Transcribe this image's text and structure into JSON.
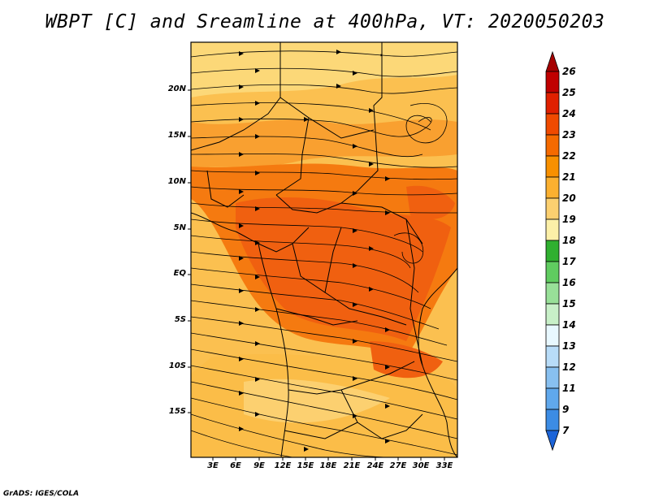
{
  "title": "WBPT [C] and Sreamline at 400hPa, VT: 2020050203",
  "credit": "GrADS: IGES/COLA",
  "map": {
    "lat_labels": [
      "20N",
      "15N",
      "10N",
      "5N",
      "EQ",
      "5S",
      "10S",
      "15S"
    ],
    "lon_labels": [
      "3E",
      "6E",
      "9E",
      "12E",
      "15E",
      "18E",
      "21E",
      "24E",
      "27E",
      "30E",
      "33E"
    ]
  },
  "colorbar": {
    "labels": [
      "26",
      "25",
      "24",
      "23",
      "22",
      "21",
      "20",
      "19",
      "18",
      "17",
      "16",
      "15",
      "14",
      "13",
      "12",
      "11",
      "9",
      "7"
    ],
    "colors": [
      "#a50000",
      "#c00000",
      "#e02000",
      "#f04a00",
      "#f56a00",
      "#f89000",
      "#fbb030",
      "#fcd070",
      "#fcf0a8",
      "#30b030",
      "#60cc60",
      "#98e098",
      "#c8f0c8",
      "#e8f8ff",
      "#b8dcf8",
      "#88c0f0",
      "#60a8ec",
      "#3c8ce4",
      "#1c64d8"
    ]
  }
}
